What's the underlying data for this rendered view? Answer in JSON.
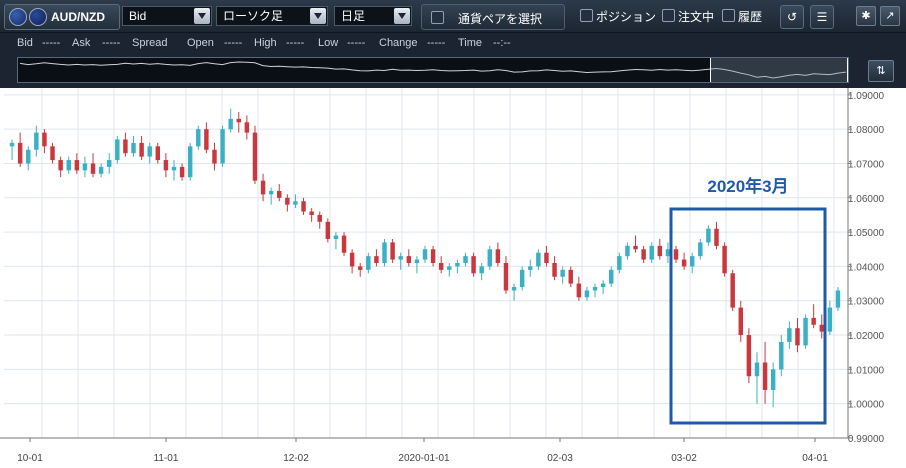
{
  "toolbar": {
    "pair": "AUD/NZD",
    "price_type": "Bid",
    "chart_type": "ローソク足",
    "timeframe": "日足",
    "pair_select": "通貨ペアを選択",
    "positions": "ポジション",
    "orders": "注文中",
    "history": "履歴"
  },
  "quote": {
    "bid_label": "Bid",
    "bid_value": "-----",
    "ask_label": "Ask",
    "ask_value": "-----",
    "spread_label": "Spread",
    "open_label": "Open",
    "open_value": "-----",
    "high_label": "High",
    "high_value": "-----",
    "low_label": "Low",
    "low_value": "-----",
    "change_label": "Change",
    "change_value": "-----",
    "time_label": "Time",
    "time_value": "--:--"
  },
  "chart_data": {
    "type": "candlestick",
    "x_ticks": [
      "10-01",
      "11-01",
      "12-02",
      "2020-01-01",
      "02-03",
      "03-02",
      "04-01"
    ],
    "y_ticks": [
      "1.09000",
      "1.08000",
      "1.07000",
      "1.06000",
      "1.05000",
      "1.04000",
      "1.03000",
      "1.02000",
      "1.01000",
      "1.00000",
      "0.99000"
    ],
    "ylim": [
      0.99,
      1.092
    ],
    "annotation": "2020年3月",
    "colors": {
      "up": "#3bb0c4",
      "down": "#c8383e",
      "box": "#1f5aa8",
      "grid": "#dfe6ee"
    },
    "candles": [
      [
        1.075,
        1.077,
        1.071,
        1.076
      ],
      [
        1.076,
        1.079,
        1.069,
        1.07
      ],
      [
        1.07,
        1.075,
        1.068,
        1.074
      ],
      [
        1.074,
        1.081,
        1.072,
        1.079
      ],
      [
        1.079,
        1.08,
        1.073,
        1.075
      ],
      [
        1.075,
        1.076,
        1.07,
        1.071
      ],
      [
        1.071,
        1.072,
        1.066,
        1.068
      ],
      [
        1.068,
        1.072,
        1.067,
        1.071
      ],
      [
        1.071,
        1.073,
        1.067,
        1.068
      ],
      [
        1.068,
        1.072,
        1.066,
        1.07
      ],
      [
        1.07,
        1.073,
        1.066,
        1.067
      ],
      [
        1.067,
        1.07,
        1.066,
        1.069
      ],
      [
        1.069,
        1.073,
        1.067,
        1.071
      ],
      [
        1.071,
        1.078,
        1.07,
        1.077
      ],
      [
        1.077,
        1.079,
        1.072,
        1.073
      ],
      [
        1.073,
        1.078,
        1.072,
        1.076
      ],
      [
        1.076,
        1.078,
        1.071,
        1.072
      ],
      [
        1.072,
        1.076,
        1.07,
        1.075
      ],
      [
        1.075,
        1.076,
        1.07,
        1.071
      ],
      [
        1.071,
        1.073,
        1.066,
        1.068
      ],
      [
        1.068,
        1.071,
        1.065,
        1.069
      ],
      [
        1.069,
        1.07,
        1.065,
        1.066
      ],
      [
        1.066,
        1.076,
        1.065,
        1.075
      ],
      [
        1.075,
        1.081,
        1.074,
        1.08
      ],
      [
        1.08,
        1.082,
        1.073,
        1.074
      ],
      [
        1.074,
        1.076,
        1.068,
        1.07
      ],
      [
        1.07,
        1.081,
        1.069,
        1.08
      ],
      [
        1.08,
        1.086,
        1.079,
        1.083
      ],
      [
        1.083,
        1.085,
        1.079,
        1.082
      ],
      [
        1.082,
        1.084,
        1.077,
        1.079
      ],
      [
        1.079,
        1.081,
        1.064,
        1.065
      ],
      [
        1.065,
        1.067,
        1.059,
        1.061
      ],
      [
        1.061,
        1.063,
        1.058,
        1.062
      ],
      [
        1.062,
        1.064,
        1.059,
        1.06
      ],
      [
        1.06,
        1.061,
        1.056,
        1.058
      ],
      [
        1.058,
        1.061,
        1.057,
        1.059
      ],
      [
        1.059,
        1.06,
        1.055,
        1.056
      ],
      [
        1.056,
        1.057,
        1.053,
        1.055
      ],
      [
        1.055,
        1.056,
        1.051,
        1.053
      ],
      [
        1.053,
        1.054,
        1.047,
        1.048
      ],
      [
        1.048,
        1.05,
        1.045,
        1.049
      ],
      [
        1.049,
        1.05,
        1.043,
        1.044
      ],
      [
        1.044,
        1.045,
        1.038,
        1.04
      ],
      [
        1.04,
        1.041,
        1.037,
        1.039
      ],
      [
        1.039,
        1.044,
        1.038,
        1.043
      ],
      [
        1.043,
        1.045,
        1.04,
        1.041
      ],
      [
        1.041,
        1.048,
        1.04,
        1.047
      ],
      [
        1.047,
        1.048,
        1.041,
        1.042
      ],
      [
        1.042,
        1.044,
        1.039,
        1.043
      ],
      [
        1.043,
        1.045,
        1.04,
        1.041
      ],
      [
        1.041,
        1.043,
        1.038,
        1.042
      ],
      [
        1.042,
        1.046,
        1.041,
        1.045
      ],
      [
        1.045,
        1.046,
        1.04,
        1.041
      ],
      [
        1.041,
        1.043,
        1.038,
        1.039
      ],
      [
        1.039,
        1.041,
        1.037,
        1.04
      ],
      [
        1.04,
        1.042,
        1.038,
        1.041
      ],
      [
        1.041,
        1.044,
        1.04,
        1.043
      ],
      [
        1.043,
        1.044,
        1.037,
        1.038
      ],
      [
        1.038,
        1.041,
        1.036,
        1.04
      ],
      [
        1.04,
        1.046,
        1.039,
        1.045
      ],
      [
        1.045,
        1.047,
        1.04,
        1.041
      ],
      [
        1.041,
        1.043,
        1.032,
        1.033
      ],
      [
        1.033,
        1.035,
        1.03,
        1.034
      ],
      [
        1.034,
        1.04,
        1.033,
        1.039
      ],
      [
        1.039,
        1.042,
        1.037,
        1.04
      ],
      [
        1.04,
        1.045,
        1.039,
        1.044
      ],
      [
        1.044,
        1.046,
        1.04,
        1.041
      ],
      [
        1.041,
        1.043,
        1.036,
        1.037
      ],
      [
        1.037,
        1.04,
        1.035,
        1.039
      ],
      [
        1.039,
        1.04,
        1.034,
        1.035
      ],
      [
        1.035,
        1.037,
        1.03,
        1.031
      ],
      [
        1.031,
        1.034,
        1.03,
        1.033
      ],
      [
        1.033,
        1.035,
        1.031,
        1.034
      ],
      [
        1.034,
        1.036,
        1.032,
        1.035
      ],
      [
        1.035,
        1.04,
        1.034,
        1.039
      ],
      [
        1.039,
        1.044,
        1.038,
        1.043
      ],
      [
        1.043,
        1.047,
        1.042,
        1.046
      ],
      [
        1.046,
        1.049,
        1.044,
        1.045
      ],
      [
        1.045,
        1.046,
        1.041,
        1.042
      ],
      [
        1.042,
        1.047,
        1.041,
        1.046
      ],
      [
        1.046,
        1.048,
        1.042,
        1.043
      ],
      [
        1.043,
        1.047,
        1.041,
        1.045
      ],
      [
        1.045,
        1.046,
        1.041,
        1.042
      ],
      [
        1.042,
        1.044,
        1.039,
        1.04
      ],
      [
        1.04,
        1.044,
        1.038,
        1.043
      ],
      [
        1.043,
        1.048,
        1.042,
        1.047
      ],
      [
        1.047,
        1.052,
        1.046,
        1.051
      ],
      [
        1.051,
        1.053,
        1.045,
        1.046
      ],
      [
        1.046,
        1.047,
        1.037,
        1.038
      ],
      [
        1.038,
        1.039,
        1.027,
        1.028
      ],
      [
        1.028,
        1.03,
        1.018,
        1.02
      ],
      [
        1.02,
        1.022,
        1.006,
        1.008
      ],
      [
        1.008,
        1.015,
        1.0,
        1.012
      ],
      [
        1.012,
        1.018,
        1.0,
        1.004
      ],
      [
        1.004,
        1.012,
        0.999,
        1.01
      ],
      [
        1.01,
        1.02,
        1.008,
        1.018
      ],
      [
        1.018,
        1.024,
        1.016,
        1.022
      ],
      [
        1.022,
        1.025,
        1.015,
        1.017
      ],
      [
        1.017,
        1.026,
        1.016,
        1.025
      ],
      [
        1.025,
        1.029,
        1.022,
        1.023
      ],
      [
        1.023,
        1.026,
        1.019,
        1.021
      ],
      [
        1.021,
        1.03,
        1.02,
        1.028
      ],
      [
        1.028,
        1.034,
        1.027,
        1.033
      ]
    ]
  }
}
